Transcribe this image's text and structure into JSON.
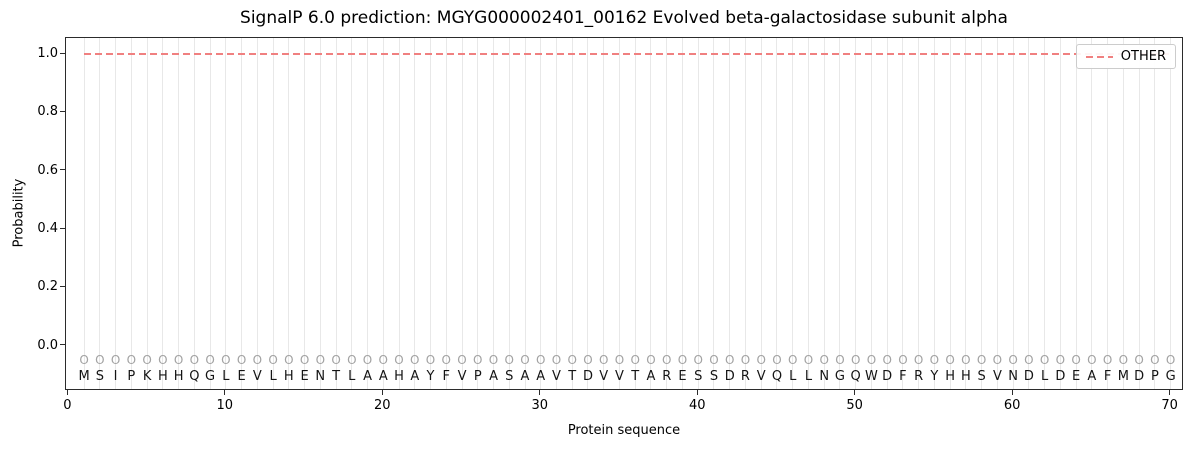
{
  "title": "SignalP 6.0 prediction: MGYG000002401_00162 Evolved beta-galactosidase subunit alpha",
  "chart_data": {
    "type": "line",
    "title": "SignalP 6.0 prediction: MGYG000002401_00162 Evolved beta-galactosidase subunit alpha",
    "xlabel": "Protein sequence",
    "ylabel": "Probability",
    "xlim": [
      -0.15,
      70.85
    ],
    "ylim": [
      -0.155,
      1.055
    ],
    "x_ticks": [
      0,
      10,
      20,
      30,
      40,
      50,
      60,
      70
    ],
    "y_ticks": [
      0.0,
      0.2,
      0.4,
      0.6,
      0.8,
      1.0
    ],
    "grid": "vertical light-gray line at every residue position",
    "legend": {
      "position": "upper right",
      "entries": [
        {
          "label": "OTHER",
          "color": "#f08080",
          "style": "dashed"
        }
      ]
    },
    "series": [
      {
        "name": "OTHER",
        "style": "dashed",
        "color": "#f08080",
        "y_constant": 1.0,
        "x_start": 1,
        "x_end": 70
      }
    ],
    "sequence": "MSIPKHHQGLEVLHENTLAAHAYFVPASAAVTDVVTARESSDRVQLLNGQWDFRYHHSVNDLDEAFMDPG",
    "position_label": "O",
    "position_label_y": -0.05,
    "sequence_y": -0.105,
    "colors": {
      "other_line": "#f08080",
      "gridline": "#e8e8e8",
      "position_label": "#a3a3a3",
      "sequence_letter": "#141414",
      "axes_edge": "#2b2b2b"
    }
  }
}
